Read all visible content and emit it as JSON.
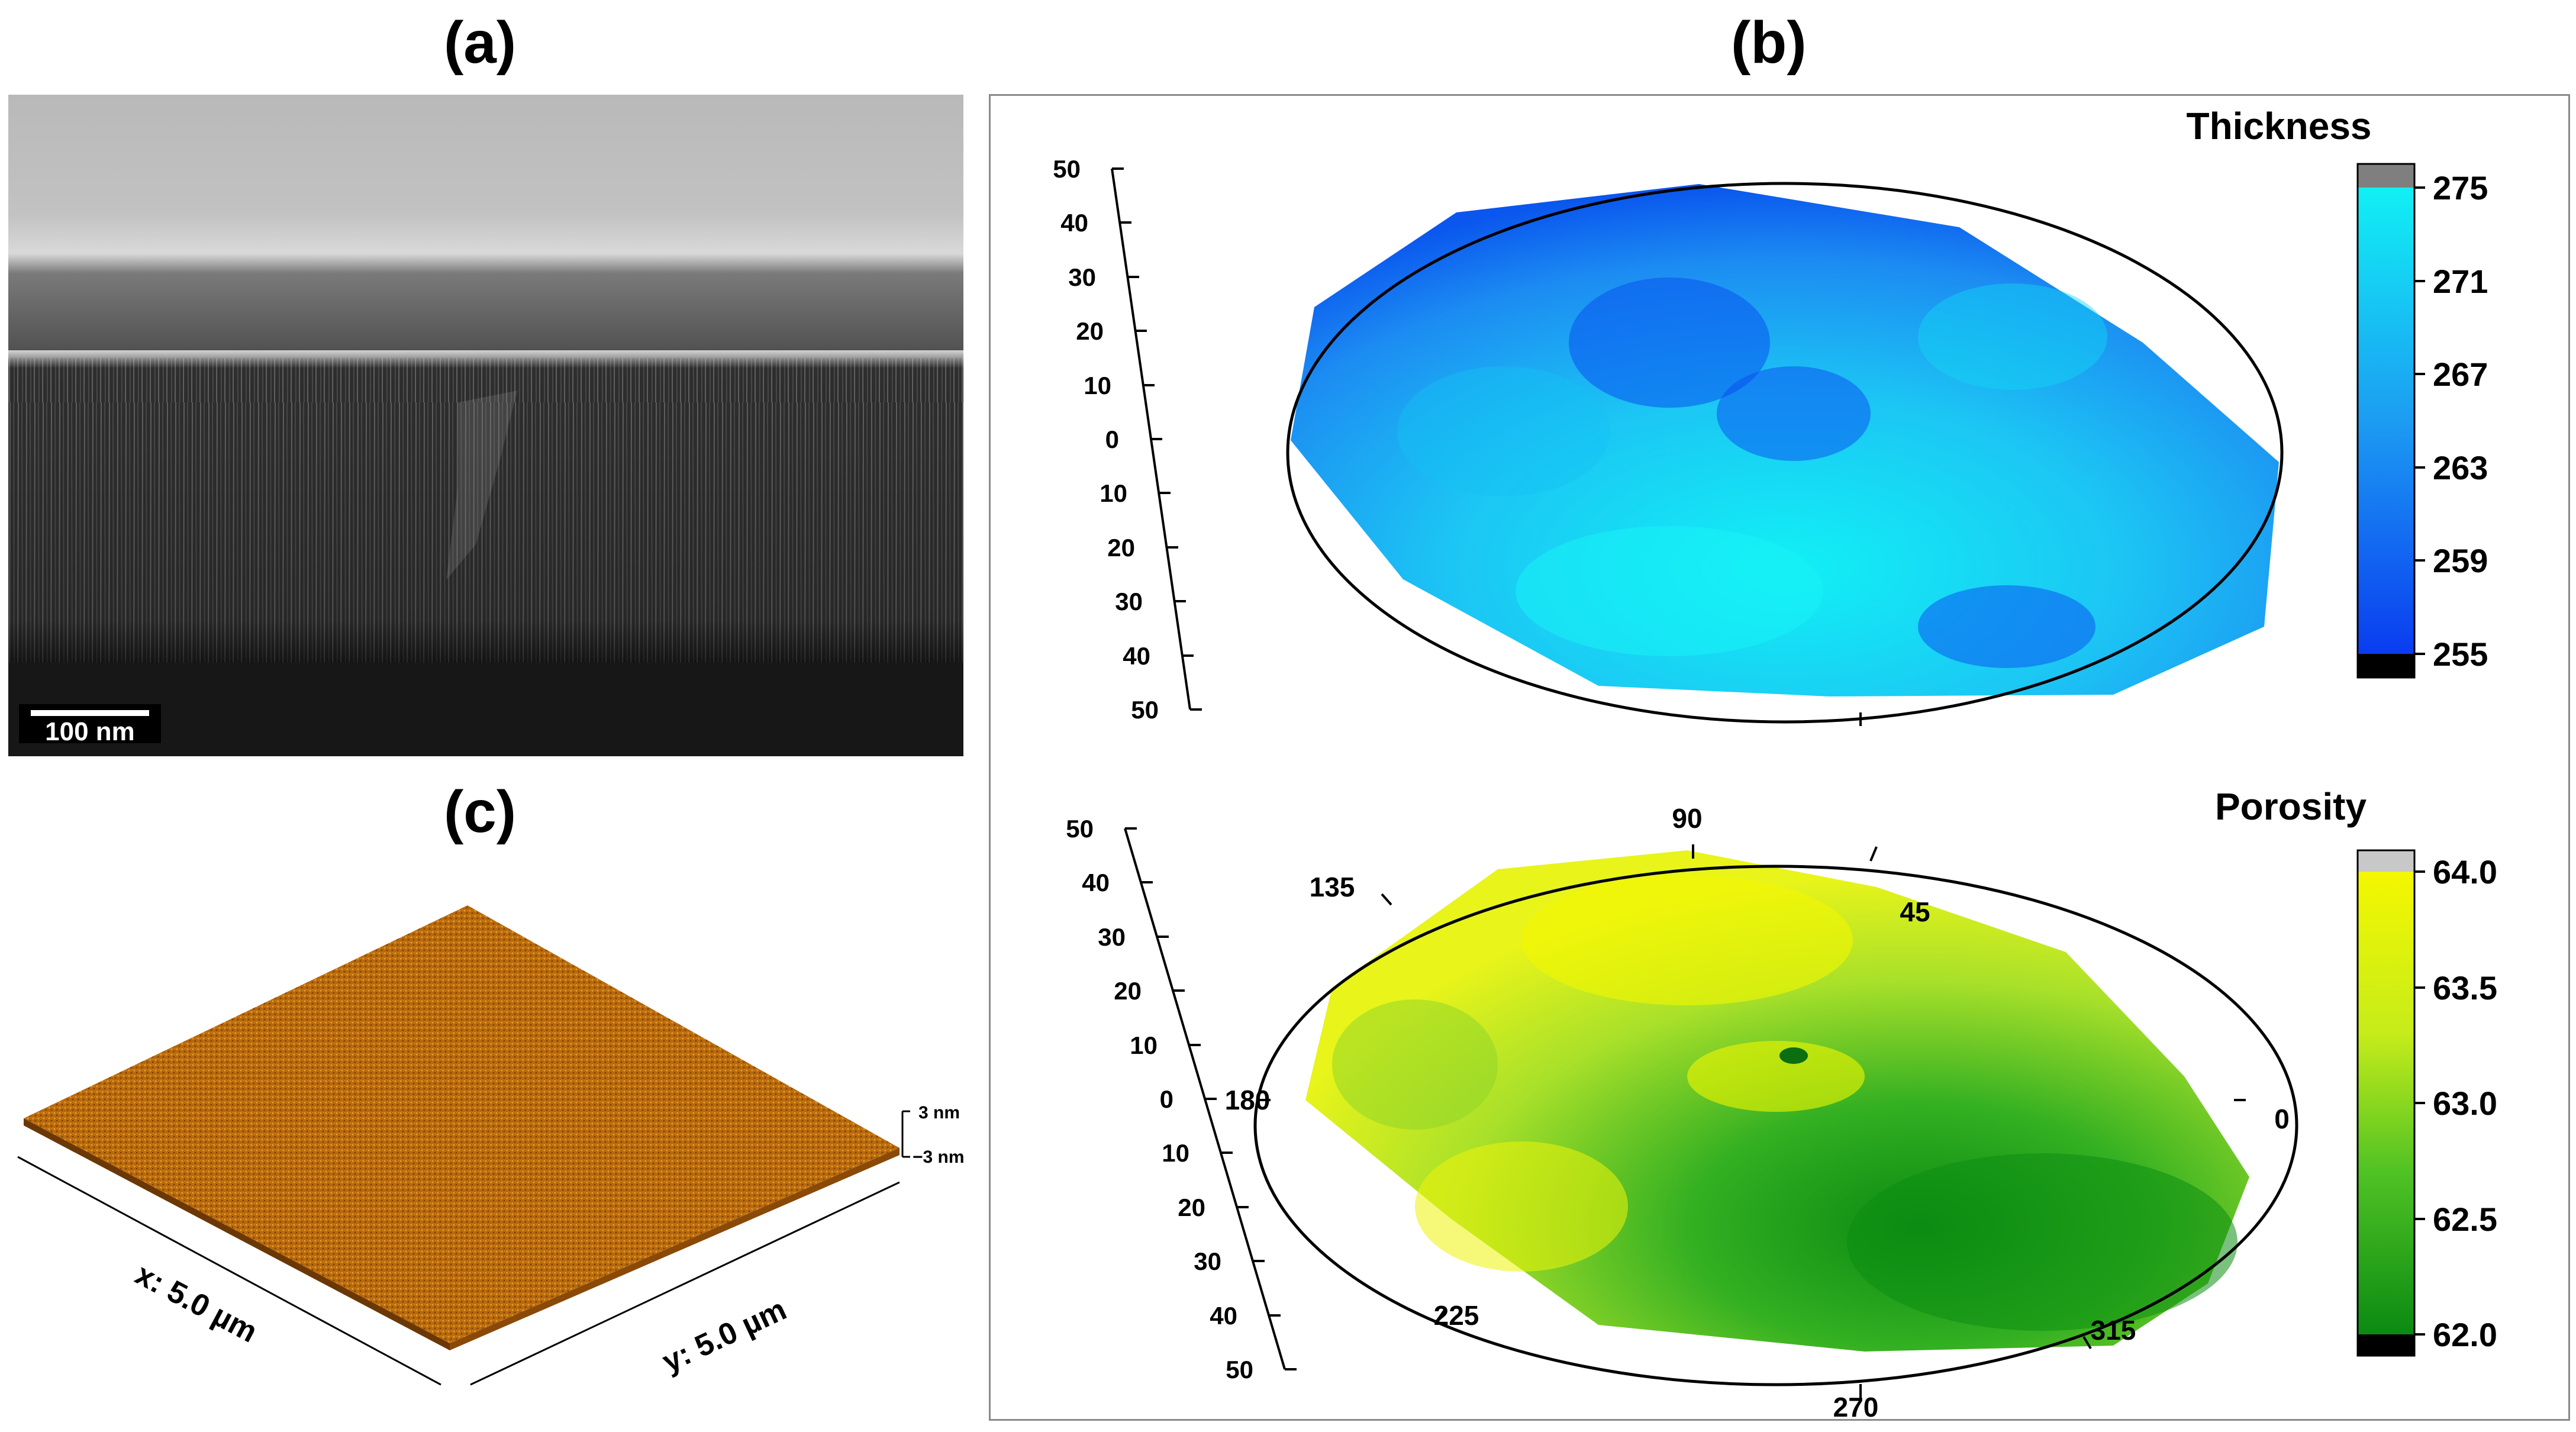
{
  "panels": {
    "a": {
      "label": "(a)",
      "scalebar_label": "100 nm"
    },
    "b": {
      "label": "(b)",
      "y_ticks": [
        "50",
        "40",
        "30",
        "20",
        "10",
        "0",
        "10",
        "20",
        "30",
        "40",
        "50"
      ],
      "angle_labels": [
        "90",
        "45",
        "0",
        "315",
        "270",
        "225",
        "180",
        "135"
      ],
      "thickness": {
        "title": "Thickness",
        "ticks": [
          "275",
          "271",
          "267",
          "263",
          "259",
          "255"
        ],
        "colors": {
          "low": "#0a46f0",
          "mid": "#1c9cf2",
          "high": "#11f0f5"
        }
      },
      "porosity": {
        "title": "Porosity",
        "ticks": [
          "64.0",
          "63.5",
          "63.0",
          "62.5",
          "62.0"
        ],
        "colors": {
          "low": "#0b8a12",
          "mid": "#8fda2a",
          "high": "#f4f700"
        }
      }
    },
    "c": {
      "label": "(c)",
      "z_top": "3 nm",
      "z_bottom": "−3 nm",
      "x_axis": "x: 5.0 µm",
      "y_axis": "y: 5.0 µm",
      "surface_color": "#b8690c"
    }
  }
}
